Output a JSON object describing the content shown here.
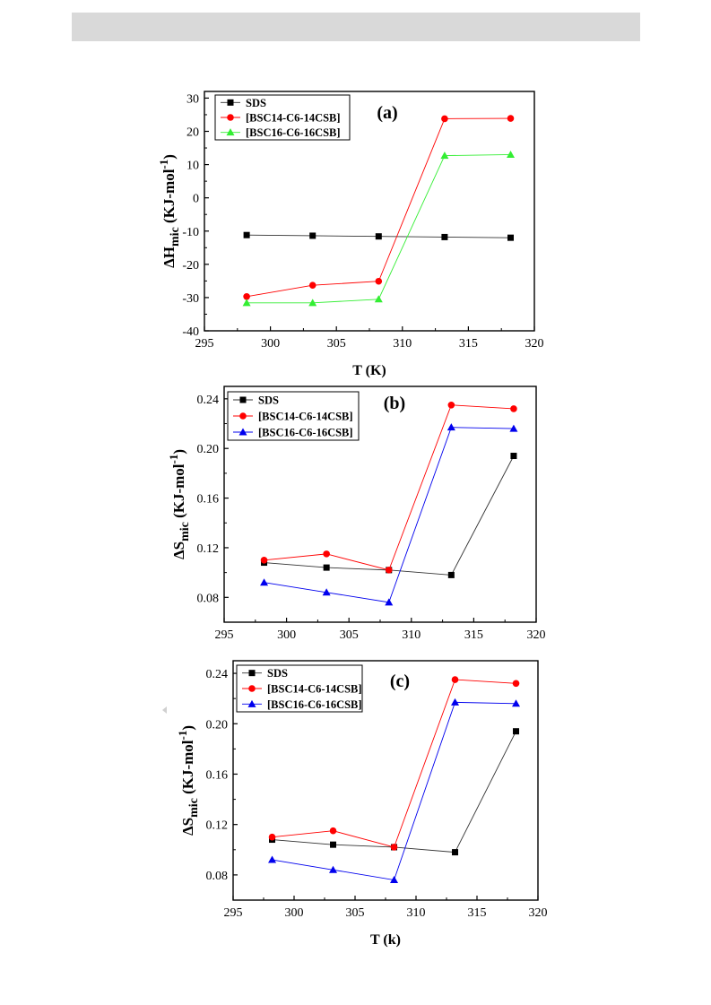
{
  "page": {
    "colors": {
      "header_bar": "#d9d9d9",
      "SDS": "#000000",
      "C14": "#ff0000",
      "C16_a": "#33ee33",
      "C16_bc": "#0000ee"
    }
  },
  "chart_data": [
    {
      "type": "line",
      "panel_label": "(a)",
      "xlabel": "T (K)",
      "ylabel": "ΔH",
      "ylabel_sub": "mic",
      "ylabel_unit": " (KJ-mol",
      "ylabel_sup": "-1",
      "ylabel_tail": ")",
      "xlim": [
        295,
        320
      ],
      "ylim": [
        -40,
        32
      ],
      "xticks": [
        295,
        300,
        305,
        310,
        315,
        320
      ],
      "yticks": [
        -40,
        -30,
        -20,
        -10,
        0,
        10,
        20,
        30
      ],
      "legend_position": "top-left",
      "series": [
        {
          "name": "SDS",
          "marker": "square",
          "color": "#000000",
          "x": [
            298.2,
            303.2,
            308.2,
            313.2,
            318.2
          ],
          "y": [
            -11.2,
            -11.4,
            -11.6,
            -11.8,
            -12.0
          ]
        },
        {
          "name": "[BSC14-C6-14CSB]",
          "marker": "circle",
          "color": "#ff0000",
          "x": [
            298.2,
            303.2,
            308.2,
            313.2,
            318.2
          ],
          "y": [
            -29.7,
            -26.3,
            -25.1,
            23.8,
            23.9
          ]
        },
        {
          "name": "[BSC16-C6-16CSB]",
          "marker": "triangle",
          "color": "#33ee33",
          "x": [
            298.2,
            303.2,
            308.2,
            313.2,
            318.2
          ],
          "y": [
            -31.6,
            -31.6,
            -30.5,
            12.7,
            13.0
          ]
        }
      ]
    },
    {
      "type": "line",
      "panel_label": "(b)",
      "xlabel": "",
      "ylabel": "ΔS",
      "ylabel_sub": "mic",
      "ylabel_unit": " (KJ-mol",
      "ylabel_sup": "-1",
      "ylabel_tail": ")",
      "xlim": [
        295,
        320
      ],
      "ylim": [
        0.06,
        0.25
      ],
      "xticks": [
        295,
        300,
        305,
        310,
        315,
        320
      ],
      "yticks": [
        "0.08",
        "0.12",
        "0.16",
        "0.20",
        "0.24"
      ],
      "legend_position": "top-left",
      "series": [
        {
          "name": "SDS",
          "marker": "square",
          "color": "#000000",
          "x": [
            298.2,
            303.2,
            308.2,
            313.2,
            318.2
          ],
          "y": [
            0.108,
            0.104,
            0.102,
            0.098,
            0.194
          ]
        },
        {
          "name": "[BSC14-C6-14CSB]",
          "marker": "circle",
          "color": "#ff0000",
          "x": [
            298.2,
            303.2,
            308.2,
            313.2,
            318.2
          ],
          "y": [
            0.11,
            0.115,
            0.102,
            0.235,
            0.232
          ]
        },
        {
          "name": "[BSC16-C6-16CSB]",
          "marker": "triangle",
          "color": "#0000ee",
          "x": [
            298.2,
            303.2,
            308.2,
            313.2,
            318.2
          ],
          "y": [
            0.092,
            0.084,
            0.076,
            0.217,
            0.216
          ]
        }
      ]
    },
    {
      "type": "line",
      "panel_label": "(c)",
      "xlabel": "T (k)",
      "ylabel": "ΔS",
      "ylabel_sub": "mic",
      "ylabel_unit": " (KJ-mol",
      "ylabel_sup": "-1",
      "ylabel_tail": ")",
      "xlim": [
        295,
        320
      ],
      "ylim": [
        0.06,
        0.25
      ],
      "xticks": [
        295,
        300,
        305,
        310,
        315,
        320
      ],
      "yticks": [
        "0.08",
        "0.12",
        "0.16",
        "0.20",
        "0.24"
      ],
      "legend_position": "top-left",
      "series": [
        {
          "name": "SDS",
          "marker": "square",
          "color": "#000000",
          "x": [
            298.2,
            303.2,
            308.2,
            313.2,
            318.2
          ],
          "y": [
            0.108,
            0.104,
            0.102,
            0.098,
            0.194
          ]
        },
        {
          "name": "[BSC14-C6-14CSB]",
          "marker": "circle",
          "color": "#ff0000",
          "x": [
            298.2,
            303.2,
            308.2,
            313.2,
            318.2
          ],
          "y": [
            0.11,
            0.115,
            0.102,
            0.235,
            0.232
          ]
        },
        {
          "name": "[BSC16-C6-16CSB]",
          "marker": "triangle",
          "color": "#0000ee",
          "x": [
            298.2,
            303.2,
            308.2,
            313.2,
            318.2
          ],
          "y": [
            0.092,
            0.084,
            0.076,
            0.217,
            0.216
          ]
        }
      ]
    }
  ]
}
